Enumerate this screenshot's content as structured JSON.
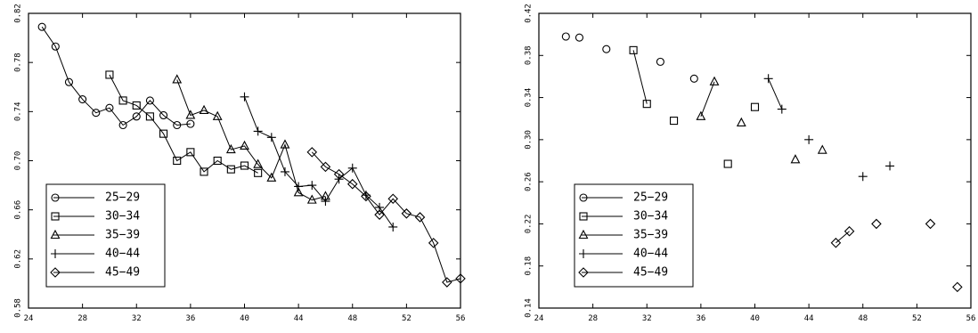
{
  "chart_data": [
    {
      "type": "line",
      "title": "",
      "xlabel": "",
      "ylabel": "",
      "xlim": [
        24,
        56
      ],
      "ylim": [
        0.58,
        0.82
      ],
      "xticks": [
        24,
        28,
        32,
        36,
        40,
        44,
        48,
        52,
        56
      ],
      "xtick_labels": [
        "24",
        "28",
        "32",
        "36",
        "40",
        "44",
        "48",
        "52",
        "56"
      ],
      "yticks": [
        0.58,
        0.62,
        0.66,
        0.7,
        0.74,
        0.78,
        0.82
      ],
      "ytick_labels": [
        "0.58",
        "0.62",
        "0.66",
        "0.70",
        "0.74",
        "0.78",
        "0.82"
      ],
      "grid": false,
      "legend_position": "lower-left",
      "series": [
        {
          "name": "25−29",
          "marker": "circle",
          "x": [
            25,
            26,
            27,
            28,
            29,
            30,
            31,
            32,
            33,
            34,
            35,
            36
          ],
          "y": [
            0.809,
            0.793,
            0.764,
            0.75,
            0.739,
            0.743,
            0.729,
            0.736,
            0.749,
            0.737,
            0.729,
            0.73
          ]
        },
        {
          "name": "30−34",
          "marker": "square",
          "x": [
            30,
            31,
            32,
            33,
            34,
            35,
            36,
            37,
            38,
            39,
            40,
            41
          ],
          "y": [
            0.77,
            0.749,
            0.745,
            0.736,
            0.722,
            0.7,
            0.707,
            0.691,
            0.7,
            0.693,
            0.696,
            0.69
          ]
        },
        {
          "name": "35−39",
          "marker": "triangle",
          "x": [
            35,
            36,
            37,
            38,
            39,
            40,
            41,
            42,
            43,
            44,
            45,
            46
          ],
          "y": [
            0.766,
            0.737,
            0.741,
            0.736,
            0.709,
            0.712,
            0.697,
            0.686,
            0.713,
            0.674,
            0.668,
            0.671
          ]
        },
        {
          "name": "40−44",
          "marker": "plus",
          "x": [
            40,
            41,
            42,
            43,
            44,
            45,
            46,
            47,
            48,
            49,
            50,
            51
          ],
          "y": [
            0.752,
            0.724,
            0.719,
            0.691,
            0.679,
            0.68,
            0.667,
            0.685,
            0.694,
            0.672,
            0.662,
            0.646
          ]
        },
        {
          "name": "45−49",
          "marker": "diamond",
          "x": [
            45,
            46,
            47,
            48,
            49,
            50,
            51,
            52,
            53,
            54,
            55,
            56
          ],
          "y": [
            0.707,
            0.695,
            0.689,
            0.681,
            0.671,
            0.656,
            0.669,
            0.657,
            0.654,
            0.633,
            0.601,
            0.604
          ]
        }
      ]
    },
    {
      "type": "scatter",
      "title": "",
      "xlabel": "",
      "ylabel": "",
      "xlim": [
        24,
        56
      ],
      "ylim": [
        0.14,
        0.42
      ],
      "xticks": [
        24,
        28,
        32,
        36,
        40,
        44,
        48,
        52,
        56
      ],
      "xtick_labels": [
        "24",
        "28",
        "32",
        "36",
        "40",
        "44",
        "48",
        "52",
        "56"
      ],
      "yticks": [
        0.14,
        0.18,
        0.22,
        0.26,
        0.3,
        0.34,
        0.38,
        0.42
      ],
      "ytick_labels": [
        "0.14",
        "0.18",
        "0.22",
        "0.26",
        "0.30",
        "0.34",
        "0.38",
        "0.42"
      ],
      "grid": false,
      "legend_position": "lower-left",
      "series": [
        {
          "name": "25−29",
          "marker": "circle",
          "points": [
            [
              26,
              0.398
            ],
            [
              27,
              0.397
            ],
            [
              29,
              0.386
            ],
            [
              33,
              0.374
            ],
            [
              35.5,
              0.358
            ]
          ],
          "segments": []
        },
        {
          "name": "30−34",
          "marker": "square",
          "points": [
            [
              31,
              0.385
            ],
            [
              32,
              0.334
            ],
            [
              34,
              0.318
            ],
            [
              38,
              0.277
            ],
            [
              40,
              0.331
            ]
          ],
          "segments": [
            [
              0,
              1
            ]
          ]
        },
        {
          "name": "35−39",
          "marker": "triangle",
          "points": [
            [
              36,
              0.322
            ],
            [
              37,
              0.355
            ],
            [
              39,
              0.316
            ],
            [
              43,
              0.281
            ],
            [
              45,
              0.29
            ]
          ],
          "segments": [
            [
              0,
              1
            ]
          ]
        },
        {
          "name": "40−44",
          "marker": "plus",
          "points": [
            [
              41,
              0.358
            ],
            [
              42,
              0.329
            ],
            [
              44,
              0.3
            ],
            [
              48,
              0.265
            ],
            [
              50,
              0.275
            ]
          ],
          "segments": [
            [
              0,
              1
            ]
          ]
        },
        {
          "name": "45−49",
          "marker": "diamond",
          "points": [
            [
              46,
              0.202
            ],
            [
              47,
              0.213
            ],
            [
              49,
              0.22
            ],
            [
              53,
              0.22
            ],
            [
              55,
              0.16
            ]
          ],
          "segments": [
            [
              0,
              1
            ]
          ]
        }
      ]
    }
  ]
}
